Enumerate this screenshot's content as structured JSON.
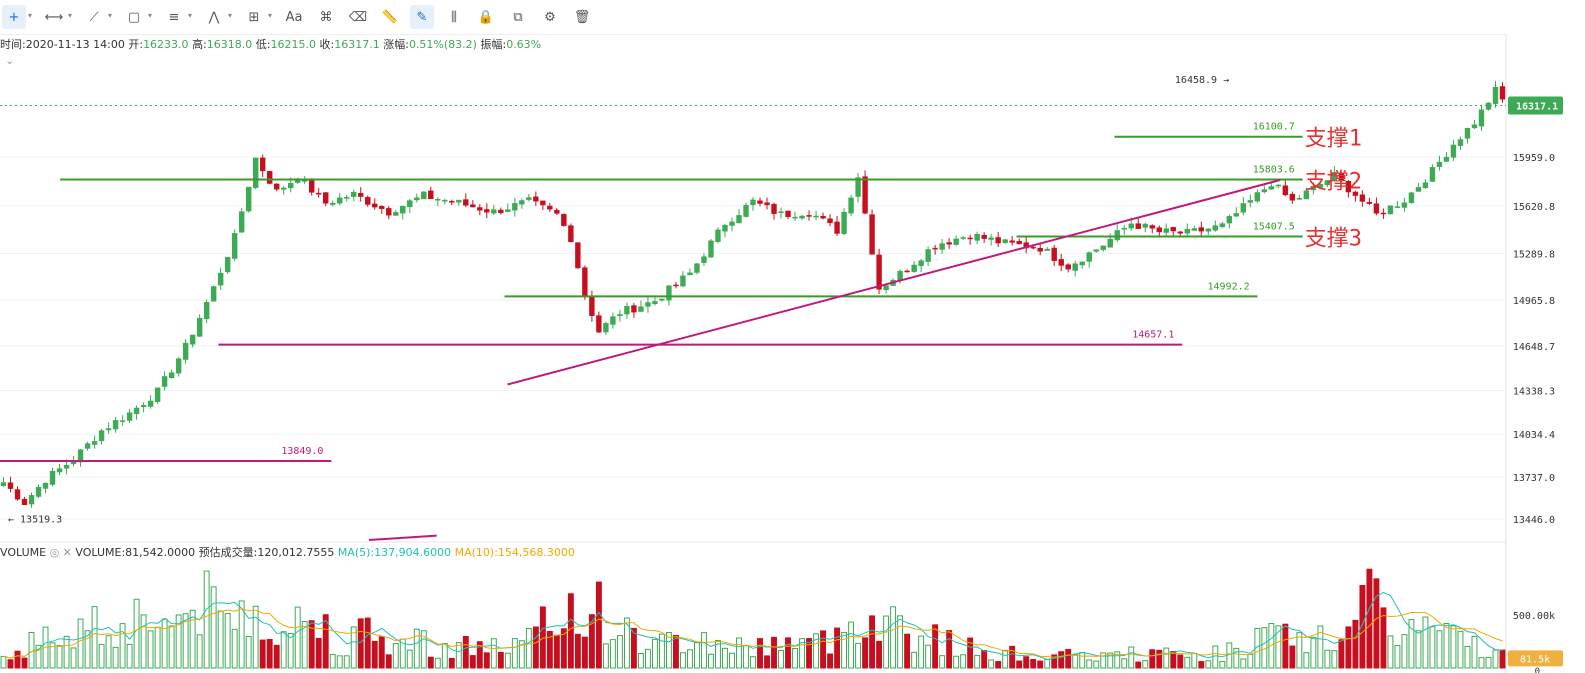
{
  "toolbar": {
    "tools": [
      {
        "name": "crosshair-icon",
        "glyph": "+",
        "caret": true,
        "active": true
      },
      {
        "name": "horizontal-ray-icon",
        "glyph": "⟷",
        "caret": true
      },
      {
        "name": "trend-line-icon",
        "glyph": "⟋",
        "caret": true
      },
      {
        "name": "rectangle-icon",
        "glyph": "▢",
        "caret": true
      },
      {
        "name": "parallel-lines-icon",
        "glyph": "≡",
        "caret": true
      },
      {
        "name": "wave-pattern-icon",
        "glyph": "⋀",
        "caret": true
      },
      {
        "name": "measure-icon",
        "glyph": "⊞",
        "caret": true
      },
      {
        "name": "text-tool-icon",
        "glyph": "Aa",
        "caret": false
      },
      {
        "name": "magnet-icon",
        "glyph": "⌘",
        "caret": false
      },
      {
        "name": "eraser-icon",
        "glyph": "⌫",
        "caret": false
      },
      {
        "name": "ruler-icon",
        "glyph": "📏",
        "caret": false
      },
      {
        "name": "draw-mode-icon",
        "glyph": "✎",
        "caret": false,
        "active": true
      },
      {
        "name": "bars-icon",
        "glyph": "⫼",
        "caret": false
      },
      {
        "name": "lock-icon",
        "glyph": "🔒",
        "caret": false
      },
      {
        "name": "copy-icon",
        "glyph": "⧉",
        "caret": false
      },
      {
        "name": "settings-drawing-icon",
        "glyph": "⚙",
        "caret": false
      },
      {
        "name": "trash-icon",
        "glyph": "🗑",
        "caret": false
      }
    ]
  },
  "info": {
    "time_label": "时间:",
    "time_value": "2020-11-13 14:00",
    "open_label": "开:",
    "open_value": "16233.0",
    "high_label": "高:",
    "high_value": "16318.0",
    "low_label": "低:",
    "low_value": "16215.0",
    "close_label": "收:",
    "close_value": "16317.1",
    "change_label": "涨幅:",
    "change_value": "0.51%(83.2)",
    "amplitude_label": "振幅:",
    "amplitude_value": "0.63%"
  },
  "volume_legend": {
    "name": "VOLUME",
    "volume_text": "VOLUME:81,542.0000",
    "est_text": "预估成交量:120,012.7555",
    "ma5_text": "MA(5):137,904.6000",
    "ma10_text": "MA(10):154,568.3000"
  },
  "chart_data": {
    "type": "candlestick",
    "price_axis": {
      "ylim": [
        13300,
        16800
      ],
      "ticks": [
        "15959.0",
        "15620.8",
        "15289.8",
        "14965.8",
        "14648.7",
        "14338.3",
        "14034.4",
        "13737.0",
        "13446.0"
      ],
      "current_price": "16317.1"
    },
    "volume_axis": {
      "ylim": [
        0,
        1000000
      ],
      "ticks": [
        "500.00k",
        "0"
      ],
      "current_volume": "81.5k"
    },
    "marks": {
      "high": "16458.9",
      "low": "13519.3"
    },
    "levels": [
      {
        "value": 16100.7,
        "label": "16100.7",
        "from": 0.74,
        "to": 0.865,
        "color": "#3a9a2a",
        "tag": "支撑1"
      },
      {
        "value": 15803.6,
        "label": "15803.6",
        "from": 0.04,
        "to": 0.865,
        "color": "#3a9a2a",
        "tag": "支撑2"
      },
      {
        "value": 15407.5,
        "label": "15407.5",
        "from": 0.675,
        "to": 0.865,
        "color": "#3a9a2a",
        "tag": "支撑3"
      },
      {
        "value": 14992.2,
        "label": "14992.2",
        "from": 0.335,
        "to": 0.835,
        "color": "#3a9a2a",
        "tag": ""
      },
      {
        "value": 14657.1,
        "label": "14657.1",
        "from": 0.145,
        "to": 0.785,
        "color": "#c2187a",
        "tag": ""
      },
      {
        "value": 13849.0,
        "label": "13849.0",
        "from": 0.0,
        "to": 0.22,
        "color": "#c2187a",
        "tag": ""
      }
    ],
    "trend_lines": [
      {
        "x1": 0.337,
        "y1": 14380,
        "x2": 0.85,
        "y2": 15800,
        "color": "#c2187a"
      },
      {
        "x1": 0.245,
        "y1": 13300,
        "x2": 0.29,
        "y2": 13330,
        "color": "#c2187a"
      }
    ],
    "close_path": [
      [
        0,
        13700
      ],
      [
        6,
        13560
      ],
      [
        12,
        13720
      ],
      [
        20,
        13860
      ],
      [
        28,
        14060
      ],
      [
        36,
        14180
      ],
      [
        44,
        14330
      ],
      [
        52,
        14640
      ],
      [
        60,
        15050
      ],
      [
        66,
        15400
      ],
      [
        72,
        15950
      ],
      [
        78,
        15720
      ],
      [
        84,
        15820
      ],
      [
        92,
        15640
      ],
      [
        100,
        15700
      ],
      [
        110,
        15580
      ],
      [
        120,
        15690
      ],
      [
        130,
        15640
      ],
      [
        140,
        15580
      ],
      [
        150,
        15650
      ],
      [
        158,
        15560
      ],
      [
        162,
        15400
      ],
      [
        166,
        15000
      ],
      [
        170,
        14750
      ],
      [
        176,
        14880
      ],
      [
        186,
        14960
      ],
      [
        196,
        15150
      ],
      [
        206,
        15500
      ],
      [
        214,
        15650
      ],
      [
        222,
        15560
      ],
      [
        230,
        15580
      ],
      [
        238,
        15450
      ],
      [
        244,
        15830
      ],
      [
        250,
        15050
      ],
      [
        256,
        15150
      ],
      [
        266,
        15350
      ],
      [
        276,
        15420
      ],
      [
        286,
        15360
      ],
      [
        296,
        15330
      ],
      [
        304,
        15200
      ],
      [
        314,
        15350
      ],
      [
        322,
        15500
      ],
      [
        330,
        15440
      ],
      [
        338,
        15430
      ],
      [
        348,
        15480
      ],
      [
        356,
        15650
      ],
      [
        362,
        15780
      ],
      [
        368,
        15650
      ],
      [
        374,
        15740
      ],
      [
        380,
        15830
      ],
      [
        386,
        15700
      ],
      [
        392,
        15560
      ],
      [
        400,
        15660
      ],
      [
        408,
        15860
      ],
      [
        414,
        16050
      ],
      [
        420,
        16200
      ],
      [
        426,
        16420
      ],
      [
        430,
        16290
      ]
    ],
    "volume_path": [
      [
        0,
        150000
      ],
      [
        8,
        250000
      ],
      [
        16,
        350000
      ],
      [
        24,
        500000
      ],
      [
        32,
        400000
      ],
      [
        40,
        600000
      ],
      [
        48,
        450000
      ],
      [
        56,
        700000
      ],
      [
        64,
        500000
      ],
      [
        72,
        650000
      ],
      [
        80,
        400000
      ],
      [
        88,
        550000
      ],
      [
        96,
        300000
      ],
      [
        104,
        350000
      ],
      [
        112,
        250000
      ],
      [
        120,
        300000
      ],
      [
        128,
        200000
      ],
      [
        136,
        250000
      ],
      [
        144,
        200000
      ],
      [
        150,
        300000
      ],
      [
        158,
        500000
      ],
      [
        164,
        700000
      ],
      [
        170,
        600000
      ],
      [
        178,
        350000
      ],
      [
        186,
        250000
      ],
      [
        196,
        300000
      ],
      [
        206,
        250000
      ],
      [
        214,
        200000
      ],
      [
        222,
        300000
      ],
      [
        230,
        250000
      ],
      [
        238,
        300000
      ],
      [
        244,
        600000
      ],
      [
        250,
        550000
      ],
      [
        256,
        450000
      ],
      [
        266,
        300000
      ],
      [
        276,
        200000
      ],
      [
        286,
        150000
      ],
      [
        296,
        130000
      ],
      [
        306,
        120000
      ],
      [
        316,
        130000
      ],
      [
        326,
        150000
      ],
      [
        336,
        130000
      ],
      [
        346,
        150000
      ],
      [
        356,
        250000
      ],
      [
        362,
        350000
      ],
      [
        370,
        250000
      ],
      [
        380,
        350000
      ],
      [
        386,
        450000
      ],
      [
        392,
        750000
      ],
      [
        400,
        350000
      ],
      [
        408,
        450000
      ],
      [
        414,
        300000
      ],
      [
        422,
        250000
      ],
      [
        430,
        81542
      ]
    ]
  }
}
